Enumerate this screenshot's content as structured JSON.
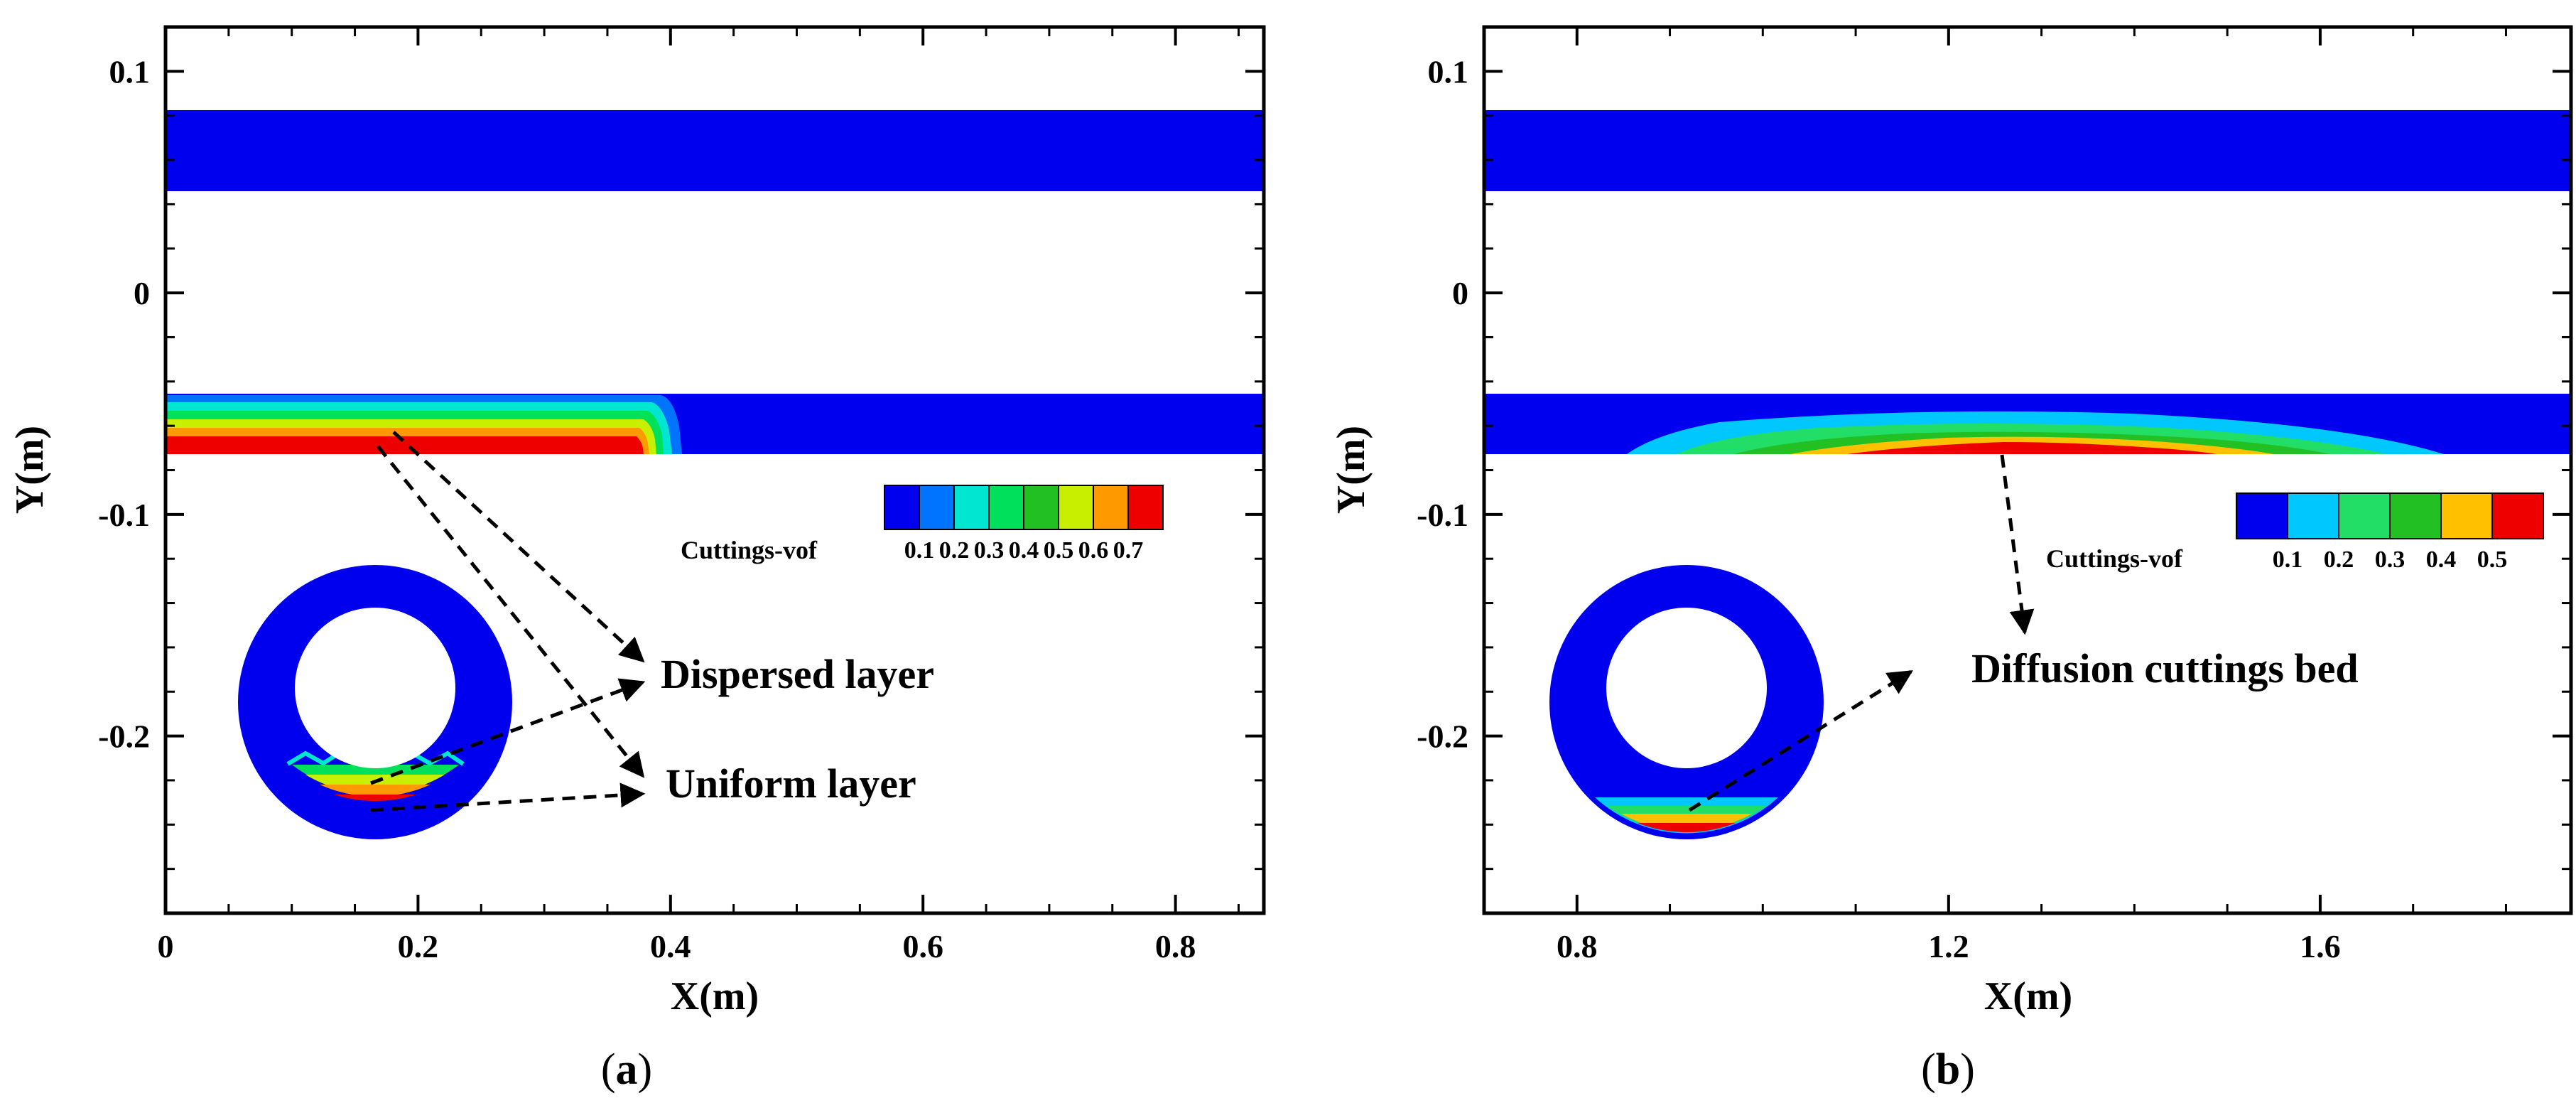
{
  "chart_data": [
    {
      "type": "heatmap",
      "panel": "a",
      "caption_letter": "a",
      "xlabel": "X(m)",
      "ylabel": "Y(m)",
      "xlim": [
        0,
        0.87
      ],
      "ylim": [
        -0.28,
        0.12
      ],
      "xticks": [
        0,
        0.2,
        0.4,
        0.6,
        0.8
      ],
      "xtick_labels": [
        "0",
        "0.2",
        "0.4",
        "0.6",
        "0.8"
      ],
      "yticks": [
        0.1,
        0,
        -0.1,
        -0.2
      ],
      "ytick_labels": [
        "0.1",
        "0",
        "-0.1",
        "-0.2"
      ],
      "upper_band_y": [
        0.04,
        0.077
      ],
      "lower_band_y": [
        -0.077,
        -0.05
      ],
      "cuttings_extent_x": [
        0,
        0.41
      ],
      "legend": {
        "title": "Cuttings-vof",
        "levels": [
          "0.1",
          "0.2",
          "0.3",
          "0.4",
          "0.5",
          "0.6",
          "0.7"
        ],
        "colors": [
          "#0000ee",
          "#0073ff",
          "#00e6d0",
          "#00e05a",
          "#22c022",
          "#c8ee00",
          "#ff9900",
          "#ee0000"
        ]
      },
      "annotations": [
        "Dispersed layer",
        "Uniform layer"
      ]
    },
    {
      "type": "heatmap",
      "panel": "b",
      "caption_letter": "b",
      "xlabel": "X(m)",
      "ylabel": "Y(m)",
      "xlim": [
        0.7,
        1.87
      ],
      "ylim": [
        -0.28,
        0.12
      ],
      "xticks": [
        0.8,
        1.2,
        1.6
      ],
      "xtick_labels": [
        "0.8",
        "1.2",
        "1.6"
      ],
      "yticks": [
        0.1,
        0,
        -0.1,
        -0.2
      ],
      "ytick_labels": [
        "0.1",
        "0",
        "-0.1",
        "-0.2"
      ],
      "upper_band_y": [
        0.04,
        0.077
      ],
      "lower_band_y": [
        -0.077,
        -0.05
      ],
      "cuttings_extent_x": [
        0.85,
        1.76
      ],
      "legend": {
        "title": "Cuttings-vof",
        "levels": [
          "0.1",
          "0.2",
          "0.3",
          "0.4",
          "0.5"
        ],
        "colors": [
          "#0000ee",
          "#00c8ff",
          "#22dd66",
          "#22c022",
          "#ffc000",
          "#ee0000"
        ]
      },
      "annotations": [
        "Diffusion cuttings bed"
      ]
    }
  ],
  "captions": [
    "(a)",
    "(b)"
  ]
}
